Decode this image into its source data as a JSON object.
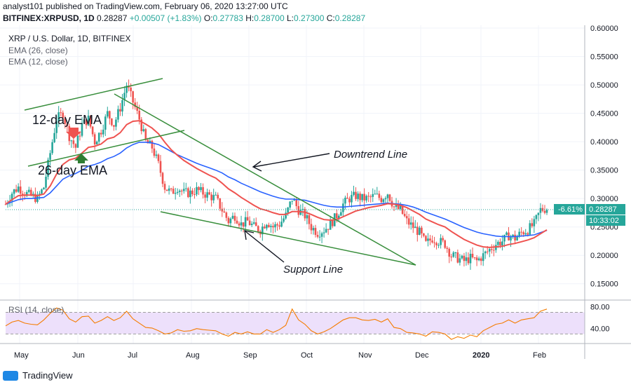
{
  "header": {
    "line1": "analyst101 published on TradingView.com, February 06, 2020 13:27:00 UTC",
    "symbol": "BITFINEX:XRPUSD, 1D",
    "close_label": "0.28287",
    "change": "+0.00507 (+1.83%)",
    "o_label": "O:",
    "o": "0.27783",
    "h_label": "H:",
    "h": "0.28700",
    "l_label": "L:",
    "l": "0.27300",
    "c_label": "C:",
    "c": "0.28287"
  },
  "legend": {
    "title": "XRP / U.S. Dollar, 1D, BITFINEX",
    "ema26": "EMA (26, close)",
    "ema12": "EMA (12, close)",
    "rsi": "RSI (14, close)"
  },
  "annotations": {
    "ema12": "12-day EMA",
    "ema26": "26-day EMA",
    "downtrend": "Downtrend Line",
    "support": "Support Line"
  },
  "price_badges": {
    "pct": "-6.61%",
    "price": "0.28287",
    "countdown": "10:33:02"
  },
  "branding": {
    "name": "TradingView"
  },
  "colors": {
    "up": "#26a69a",
    "down": "#ef5350",
    "ema12": "#ef5350",
    "ema26": "#2962ff",
    "rsi": "#f57c00",
    "trendline": "#388e3c",
    "rsi_band": "#ede0fb",
    "badge": "#26a69a"
  },
  "chart_data": {
    "type": "candlestick",
    "x_ticks": [
      "May",
      "Jun",
      "Jul",
      "Aug",
      "Sep",
      "Oct",
      "Nov",
      "Dec",
      "2020",
      "Feb"
    ],
    "y_ticks": [
      "0.60000",
      "0.55000",
      "0.50000",
      "0.45000",
      "0.40000",
      "0.35000",
      "0.30000",
      "0.25000",
      "0.20000",
      "0.15000"
    ],
    "y_range": [
      0.125,
      0.605
    ],
    "rsi_ticks": [
      "80.00",
      "40.00"
    ],
    "rsi_range": [
      15,
      90
    ],
    "rsi_band": [
      30,
      70
    ],
    "close_path": [
      0.29,
      0.31,
      0.32,
      0.31,
      0.305,
      0.3,
      0.32,
      0.38,
      0.44,
      0.45,
      0.41,
      0.39,
      0.43,
      0.44,
      0.4,
      0.42,
      0.45,
      0.43,
      0.46,
      0.5,
      0.47,
      0.44,
      0.4,
      0.39,
      0.36,
      0.32,
      0.31,
      0.32,
      0.31,
      0.31,
      0.315,
      0.31,
      0.305,
      0.3,
      0.28,
      0.26,
      0.27,
      0.255,
      0.26,
      0.25,
      0.245,
      0.26,
      0.25,
      0.255,
      0.27,
      0.3,
      0.28,
      0.27,
      0.25,
      0.24,
      0.245,
      0.255,
      0.27,
      0.29,
      0.3,
      0.305,
      0.3,
      0.3,
      0.305,
      0.3,
      0.31,
      0.285,
      0.28,
      0.26,
      0.25,
      0.24,
      0.22,
      0.23,
      0.225,
      0.22,
      0.2,
      0.195,
      0.19,
      0.195,
      0.19,
      0.2,
      0.21,
      0.22,
      0.225,
      0.235,
      0.23,
      0.24,
      0.245,
      0.255,
      0.28,
      0.283
    ],
    "ema12": [
      0.29,
      0.298,
      0.305,
      0.306,
      0.306,
      0.305,
      0.308,
      0.322,
      0.343,
      0.36,
      0.368,
      0.371,
      0.38,
      0.39,
      0.392,
      0.396,
      0.405,
      0.408,
      0.416,
      0.43,
      0.436,
      0.437,
      0.431,
      0.424,
      0.414,
      0.399,
      0.386,
      0.376,
      0.367,
      0.36,
      0.353,
      0.347,
      0.341,
      0.336,
      0.327,
      0.317,
      0.31,
      0.302,
      0.295,
      0.288,
      0.282,
      0.279,
      0.275,
      0.272,
      0.272,
      0.277,
      0.277,
      0.276,
      0.272,
      0.267,
      0.263,
      0.262,
      0.263,
      0.268,
      0.273,
      0.278,
      0.281,
      0.284,
      0.286,
      0.288,
      0.291,
      0.29,
      0.288,
      0.284,
      0.278,
      0.272,
      0.264,
      0.259,
      0.254,
      0.25,
      0.242,
      0.235,
      0.228,
      0.223,
      0.218,
      0.215,
      0.214,
      0.215,
      0.216,
      0.219,
      0.221,
      0.224,
      0.227,
      0.231,
      0.238,
      0.245
    ],
    "ema26": [
      0.29,
      0.294,
      0.298,
      0.3,
      0.3,
      0.301,
      0.302,
      0.31,
      0.322,
      0.334,
      0.34,
      0.344,
      0.35,
      0.357,
      0.36,
      0.364,
      0.37,
      0.374,
      0.38,
      0.389,
      0.395,
      0.399,
      0.399,
      0.398,
      0.395,
      0.389,
      0.383,
      0.377,
      0.372,
      0.367,
      0.362,
      0.358,
      0.354,
      0.35,
      0.345,
      0.338,
      0.333,
      0.327,
      0.322,
      0.317,
      0.312,
      0.308,
      0.304,
      0.301,
      0.299,
      0.299,
      0.298,
      0.297,
      0.294,
      0.291,
      0.288,
      0.286,
      0.285,
      0.285,
      0.286,
      0.287,
      0.288,
      0.289,
      0.29,
      0.291,
      0.292,
      0.291,
      0.29,
      0.288,
      0.285,
      0.281,
      0.276,
      0.272,
      0.268,
      0.264,
      0.259,
      0.254,
      0.249,
      0.245,
      0.241,
      0.238,
      0.236,
      0.234,
      0.233,
      0.233,
      0.233,
      0.234,
      0.235,
      0.236,
      0.24,
      0.244
    ],
    "rsi": [
      45,
      52,
      55,
      50,
      48,
      47,
      56,
      68,
      78,
      74,
      58,
      52,
      62,
      63,
      50,
      55,
      62,
      55,
      60,
      72,
      58,
      50,
      42,
      41,
      36,
      30,
      32,
      38,
      35,
      36,
      40,
      38,
      37,
      36,
      30,
      26,
      33,
      30,
      34,
      30,
      30,
      38,
      33,
      38,
      46,
      76,
      56,
      48,
      36,
      30,
      34,
      40,
      48,
      56,
      60,
      60,
      56,
      55,
      57,
      52,
      58,
      42,
      40,
      33,
      32,
      30,
      26,
      34,
      33,
      30,
      20,
      25,
      22,
      28,
      25,
      36,
      42,
      48,
      50,
      56,
      50,
      56,
      58,
      60,
      72,
      76
    ]
  }
}
